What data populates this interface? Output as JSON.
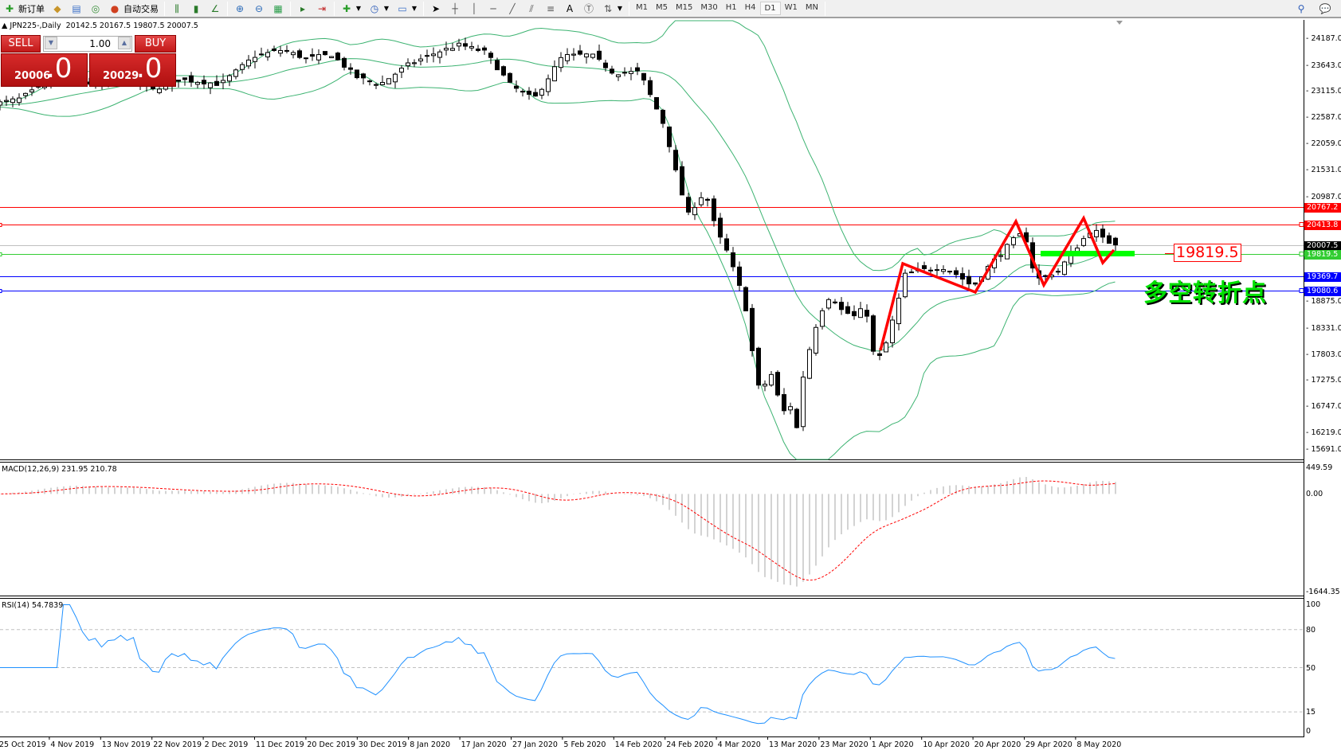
{
  "toolbar": {
    "new_order": "新订单",
    "auto_trading": "自动交易",
    "text_tool": "A",
    "timeframes": [
      "M1",
      "M5",
      "M15",
      "M30",
      "H1",
      "H4",
      "D1",
      "W1",
      "MN"
    ],
    "selected_timeframe": "D1"
  },
  "chart_info": "JPN225-,Daily  20142.5 20167.5 19807.5 20007.5",
  "trade_panel": {
    "sell_label": "SELL",
    "buy_label": "BUY",
    "lots": "1.00",
    "sell_price_main": "20006",
    "sell_price_big": ".0",
    "buy_price_main": "20029",
    "buy_price_big": ".0"
  },
  "price_axis_labels": [
    "24187.0",
    "23643.0",
    "23115.0",
    "22587.0",
    "22059.0",
    "21531.0",
    "20987.0",
    "18875.0",
    "18331.0",
    "17803.0",
    "17275.0",
    "16747.0",
    "16219.0",
    "15691.0"
  ],
  "horizontal_lines": [
    {
      "price": "20767.2",
      "color": "#ff0000"
    },
    {
      "price": "20413.8",
      "color": "#ff0000"
    },
    {
      "price": "20007.5",
      "color": "#000000",
      "line_color": "#c0c0c0"
    },
    {
      "price": "19819.5",
      "color": "#32cd32"
    },
    {
      "price": "19369.7",
      "color": "#0000ff"
    },
    {
      "price": "19080.6",
      "color": "#0000ff"
    }
  ],
  "annotations": {
    "price_label": "19819.5",
    "text": "多空转折点"
  },
  "macd": {
    "label": "MACD(12,26,9) 231.95 210.78",
    "axis_labels": [
      "449.59",
      "0.00",
      "-1644.35"
    ]
  },
  "rsi": {
    "label": "RSI(14) 54.7839",
    "axis_labels": [
      "100",
      "80",
      "50",
      "15",
      "0"
    ]
  },
  "chart_data": {
    "type": "candlestick",
    "symbol": "JPN225-",
    "timeframe": "Daily",
    "last_bar": {
      "open": 20142.5,
      "high": 20167.5,
      "low": 19807.5,
      "close": 20007.5
    },
    "ylim": [
      15691.0,
      24187.0
    ],
    "date_labels": [
      "25 Oct 2019",
      "4 Nov 2019",
      "13 Nov 2019",
      "22 Nov 2019",
      "2 Dec 2019",
      "11 Dec 2019",
      "20 Dec 2019",
      "30 Dec 2019",
      "8 Jan 2020",
      "17 Jan 2020",
      "27 Jan 2020",
      "5 Feb 2020",
      "14 Feb 2020",
      "24 Feb 2020",
      "4 Mar 2020",
      "13 Mar 2020",
      "23 Mar 2020",
      "1 Apr 2020",
      "10 Apr 2020",
      "20 Apr 2020",
      "29 Apr 2020",
      "8 May 2020"
    ],
    "close_estimates": [
      [
        "2019-10-25",
        22870
      ],
      [
        "2019-10-29",
        22950
      ],
      [
        "2019-11-04",
        23300
      ],
      [
        "2019-11-08",
        23350
      ],
      [
        "2019-11-13",
        23220
      ],
      [
        "2019-11-18",
        23400
      ],
      [
        "2019-11-22",
        23130
      ],
      [
        "2019-11-27",
        23350
      ],
      [
        "2019-12-02",
        23300
      ],
      [
        "2019-12-05",
        23250
      ],
      [
        "2019-12-11",
        23820
      ],
      [
        "2019-12-16",
        23950
      ],
      [
        "2019-12-20",
        23770
      ],
      [
        "2019-12-25",
        23850
      ],
      [
        "2019-12-30",
        23390
      ],
      [
        "2020-01-03",
        23250
      ],
      [
        "2020-01-08",
        23650
      ],
      [
        "2020-01-13",
        23900
      ],
      [
        "2020-01-17",
        24050
      ],
      [
        "2020-01-22",
        23900
      ],
      [
        "2020-01-27",
        23220
      ],
      [
        "2020-01-31",
        22950
      ],
      [
        "2020-02-05",
        23820
      ],
      [
        "2020-02-10",
        23850
      ],
      [
        "2020-02-14",
        23480
      ],
      [
        "2020-02-19",
        23500
      ],
      [
        "2020-02-24",
        22380
      ],
      [
        "2020-02-26",
        21420
      ],
      [
        "2020-02-28",
        20610
      ],
      [
        "2020-03-02",
        21090
      ],
      [
        "2020-03-04",
        20290
      ],
      [
        "2020-03-06",
        19840
      ],
      [
        "2020-03-09",
        18840
      ],
      [
        "2020-03-10",
        18040
      ],
      [
        "2020-03-12",
        16750
      ],
      [
        "2020-03-13",
        17630
      ],
      [
        "2020-03-16",
        16590
      ],
      [
        "2020-03-17",
        16910
      ],
      [
        "2020-03-19",
        16190
      ],
      [
        "2020-03-20",
        17470
      ],
      [
        "2020-03-23",
        18600
      ],
      [
        "2020-03-25",
        19000
      ],
      [
        "2020-03-27",
        18680
      ],
      [
        "2020-03-30",
        18520
      ],
      [
        "2020-03-31",
        19080
      ],
      [
        "2020-04-01",
        17880
      ],
      [
        "2020-04-03",
        17720
      ],
      [
        "2020-04-06",
        18920
      ],
      [
        "2020-04-07",
        19400
      ],
      [
        "2020-04-09",
        19480
      ],
      [
        "2020-04-14",
        19560
      ],
      [
        "2020-04-17",
        19400
      ],
      [
        "2020-04-20",
        19160
      ],
      [
        "2020-04-22",
        19480
      ],
      [
        "2020-04-27",
        20100
      ],
      [
        "2020-04-29",
        20270
      ],
      [
        "2020-05-01",
        19300
      ],
      [
        "2020-05-05",
        19480
      ],
      [
        "2020-05-07",
        19800
      ],
      [
        "2020-05-11",
        20350
      ],
      [
        "2020-05-13",
        20100
      ],
      [
        "2020-05-15",
        20007.5
      ]
    ],
    "indicators": [
      "Bollinger Bands(20,2)",
      "MACD(12,26,9)",
      "RSI(14)"
    ],
    "rsi_levels": [
      80,
      50,
      15
    ],
    "colors": {
      "bands": "#3cb371",
      "macd_hist": "#c0c0c0",
      "macd_signal": "#ff0000",
      "rsi": "#1e90ff",
      "zigzag": "#ff0000",
      "support_bar": "#00ff00"
    }
  }
}
